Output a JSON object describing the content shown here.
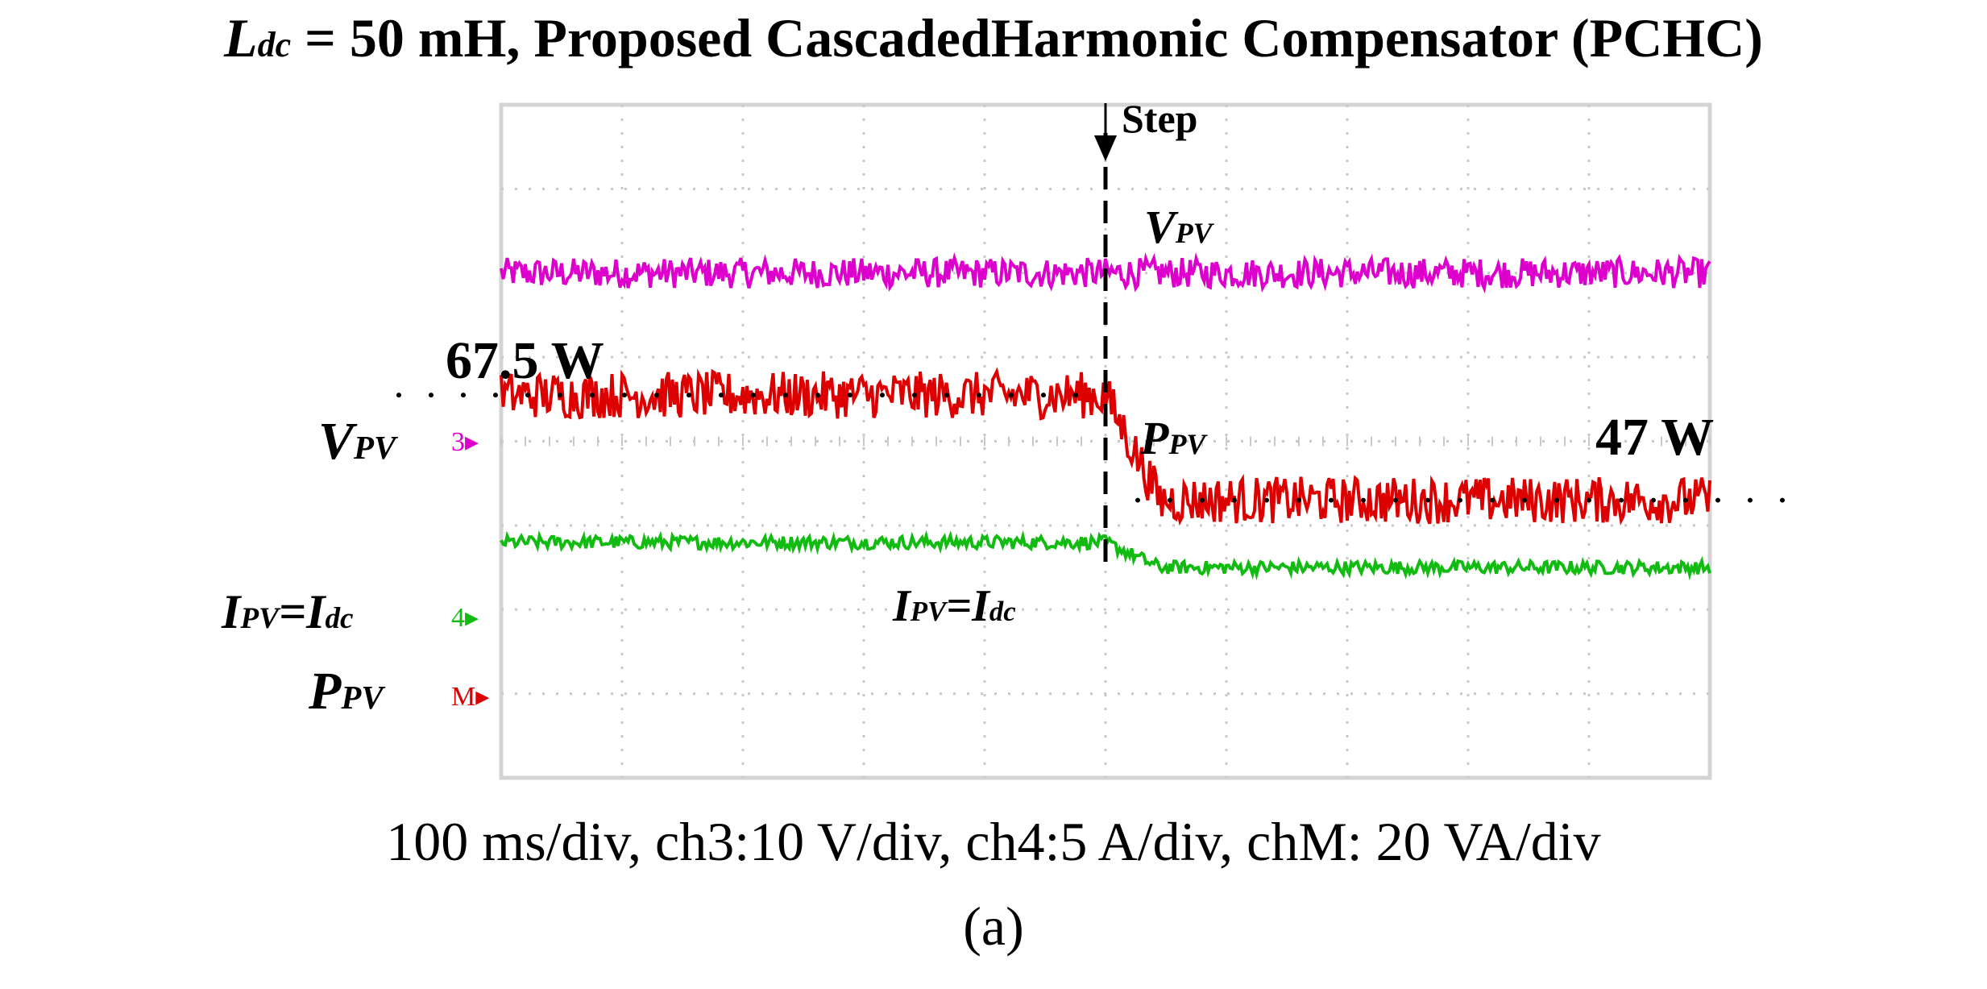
{
  "title": {
    "symbol": "L",
    "symbol_sub": "dc",
    "text": " = 50 mH, Proposed CascadedHarmonic Compensator (PCHC)"
  },
  "caption": "100 ms/div, ch3:10 V/div, ch4:5 A/div, chM: 20 VA/div",
  "panel_label": "(a)",
  "channel_labels": {
    "vpv": {
      "main": "V",
      "sub": "PV",
      "marker": "3"
    },
    "ipv": {
      "main": "I",
      "sub": "PV",
      "mid": "=I",
      "sub2": "dc",
      "marker": "4"
    },
    "ppv": {
      "main": "P",
      "sub": "PV",
      "marker": "M"
    }
  },
  "annotations": {
    "step": "Step",
    "vpv": {
      "main": "V",
      "sub": "PV"
    },
    "ppv": {
      "main": "P",
      "sub": "PV"
    },
    "ipv": {
      "main": "I",
      "sub": "PV",
      "mid": "=I",
      "sub2": "dc"
    },
    "power_before": "67.5 W",
    "power_after": "47 W"
  },
  "colors": {
    "vpv": "#dd00cc",
    "ipv": "#11bb11",
    "ppv": "#dd0000",
    "grid": "#c8c8c8",
    "frame": "#d4d4d4"
  },
  "chart_data": {
    "type": "line",
    "x_divisions": 10,
    "y_divisions": 8,
    "step_division": 5,
    "series": [
      {
        "name": "VPV",
        "level_before_div": 6.0,
        "level_after_div": 6.0,
        "noise_div": 0.18
      },
      {
        "name": "PPV",
        "level_before_div": 4.55,
        "level_after_div": 3.3,
        "noise_div": 0.28
      },
      {
        "name": "IPV=Idc",
        "level_before_div": 2.8,
        "level_after_div": 2.5,
        "noise_div": 0.08
      }
    ],
    "power_before_w": 67.5,
    "power_after_w": 47
  }
}
